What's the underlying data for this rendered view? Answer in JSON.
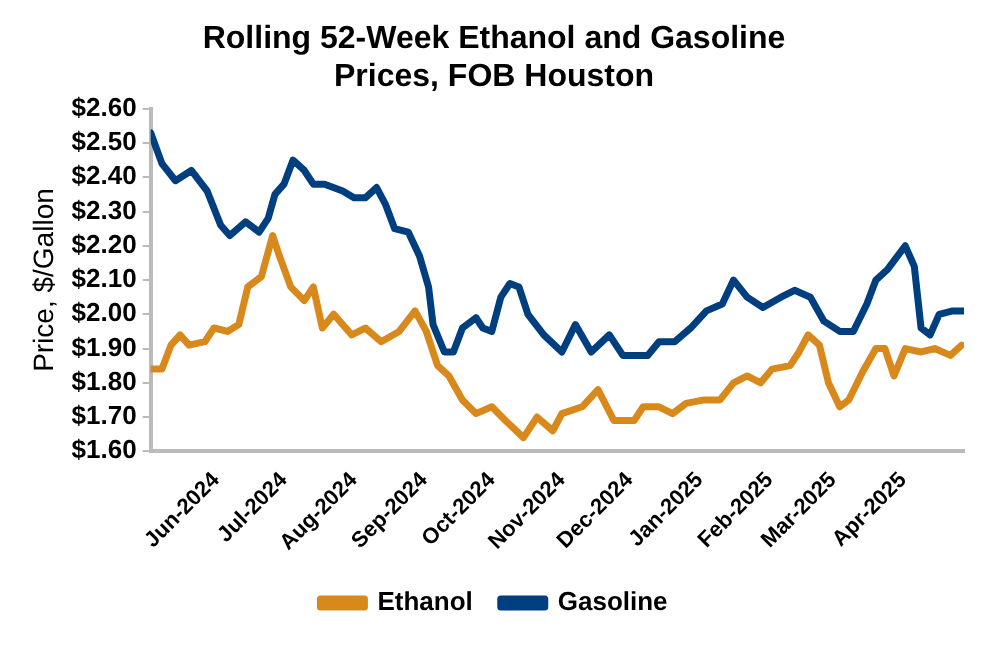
{
  "chart_data": {
    "type": "line",
    "title": "Rolling 52-Week Ethanol and Gasoline Prices, FOB Houston",
    "ylabel": "Price, $/Gallon",
    "xlim": [
      "2024-05-03",
      "2025-04-28"
    ],
    "xticks": [
      {
        "value": "2024-06-01",
        "label": "Jun-2024"
      },
      {
        "value": "2024-07-01",
        "label": "Jul-2024"
      },
      {
        "value": "2024-08-01",
        "label": "Aug-2024"
      },
      {
        "value": "2024-09-01",
        "label": "Sep-2024"
      },
      {
        "value": "2024-10-01",
        "label": "Oct-2024"
      },
      {
        "value": "2024-11-01",
        "label": "Nov-2024"
      },
      {
        "value": "2024-12-01",
        "label": "Dec-2024"
      },
      {
        "value": "2025-01-01",
        "label": "Jan-2025"
      },
      {
        "value": "2025-02-01",
        "label": "Feb-2025"
      },
      {
        "value": "2025-03-01",
        "label": "Mar-2025"
      },
      {
        "value": "2025-04-01",
        "label": "Apr-2025"
      }
    ],
    "ylim": [
      1.6,
      2.6
    ],
    "yticks": [
      {
        "value": 1.6,
        "label": "$1.60"
      },
      {
        "value": 1.7,
        "label": "$1.70"
      },
      {
        "value": 1.8,
        "label": "$1.80"
      },
      {
        "value": 1.9,
        "label": "$1.90"
      },
      {
        "value": 2.0,
        "label": "$2.00"
      },
      {
        "value": 2.1,
        "label": "$2.10"
      },
      {
        "value": 2.2,
        "label": "$2.20"
      },
      {
        "value": 2.3,
        "label": "$2.30"
      },
      {
        "value": 2.4,
        "label": "$2.40"
      },
      {
        "value": 2.5,
        "label": "$2.50"
      },
      {
        "value": 2.6,
        "label": "$2.60"
      }
    ],
    "grid": false,
    "legend": "bottom",
    "marker": "none",
    "line_style": "solid",
    "series": [
      {
        "name": "Ethanol",
        "color": "#d9891c",
        "x": [
          "2024-05-03",
          "2024-05-08",
          "2024-05-12",
          "2024-05-16",
          "2024-05-20",
          "2024-05-27",
          "2024-05-31",
          "2024-06-06",
          "2024-06-11",
          "2024-06-15",
          "2024-06-21",
          "2024-06-26",
          "2024-06-29",
          "2024-07-04",
          "2024-07-10",
          "2024-07-14",
          "2024-07-18",
          "2024-07-23",
          "2024-07-31",
          "2024-08-06",
          "2024-08-13",
          "2024-08-21",
          "2024-08-28",
          "2024-09-02",
          "2024-09-07",
          "2024-09-12",
          "2024-09-18",
          "2024-09-24",
          "2024-10-01",
          "2024-10-07",
          "2024-10-15",
          "2024-10-21",
          "2024-10-28",
          "2024-11-01",
          "2024-11-10",
          "2024-11-17",
          "2024-11-24",
          "2024-12-03",
          "2024-12-07",
          "2024-12-14",
          "2024-12-20",
          "2024-12-26",
          "2025-01-03",
          "2025-01-10",
          "2025-01-16",
          "2025-01-22",
          "2025-01-28",
          "2025-02-02",
          "2025-02-10",
          "2025-02-14",
          "2025-02-18",
          "2025-02-23",
          "2025-02-27",
          "2025-03-04",
          "2025-03-08",
          "2025-03-14",
          "2025-03-20",
          "2025-03-24",
          "2025-03-28",
          "2025-04-02",
          "2025-04-09",
          "2025-04-15",
          "2025-04-22",
          "2025-04-27"
        ],
        "values": [
          1.84,
          1.84,
          1.91,
          1.94,
          1.91,
          1.92,
          1.96,
          1.95,
          1.97,
          2.08,
          2.11,
          2.23,
          2.17,
          2.08,
          2.04,
          2.08,
          1.96,
          2.0,
          1.94,
          1.96,
          1.92,
          1.95,
          2.01,
          1.95,
          1.85,
          1.82,
          1.75,
          1.71,
          1.73,
          1.69,
          1.64,
          1.7,
          1.66,
          1.71,
          1.73,
          1.78,
          1.69,
          1.69,
          1.73,
          1.73,
          1.71,
          1.74,
          1.75,
          1.75,
          1.8,
          1.82,
          1.8,
          1.84,
          1.85,
          1.89,
          1.94,
          1.91,
          1.8,
          1.73,
          1.75,
          1.83,
          1.9,
          1.9,
          1.82,
          1.9,
          1.89,
          1.9,
          1.88,
          1.91
        ]
      },
      {
        "name": "Gasoline",
        "color": "#003f7f",
        "x": [
          "2024-05-03",
          "2024-05-08",
          "2024-05-14",
          "2024-05-21",
          "2024-05-28",
          "2024-06-03",
          "2024-06-07",
          "2024-06-14",
          "2024-06-20",
          "2024-06-24",
          "2024-06-27",
          "2024-07-01",
          "2024-07-05",
          "2024-07-10",
          "2024-07-14",
          "2024-07-19",
          "2024-07-27",
          "2024-08-01",
          "2024-08-06",
          "2024-08-11",
          "2024-08-15",
          "2024-08-19",
          "2024-08-25",
          "2024-08-30",
          "2024-09-03",
          "2024-09-05",
          "2024-09-10",
          "2024-09-14",
          "2024-09-18",
          "2024-09-24",
          "2024-09-27",
          "2024-10-01",
          "2024-10-05",
          "2024-10-09",
          "2024-10-13",
          "2024-10-17",
          "2024-10-24",
          "2024-11-01",
          "2024-11-07",
          "2024-11-14",
          "2024-11-22",
          "2024-11-28",
          "2024-12-09",
          "2024-12-14",
          "2024-12-21",
          "2024-12-28",
          "2025-01-04",
          "2025-01-11",
          "2025-01-16",
          "2025-01-22",
          "2025-01-29",
          "2025-02-06",
          "2025-02-12",
          "2025-02-19",
          "2025-02-25",
          "2025-03-04",
          "2025-03-10",
          "2025-03-16",
          "2025-03-20",
          "2025-03-25",
          "2025-04-02",
          "2025-04-06",
          "2025-04-09",
          "2025-04-13",
          "2025-04-17",
          "2025-04-23",
          "2025-04-28"
        ],
        "values": [
          2.53,
          2.44,
          2.39,
          2.42,
          2.36,
          2.26,
          2.23,
          2.27,
          2.24,
          2.28,
          2.35,
          2.38,
          2.45,
          2.42,
          2.38,
          2.38,
          2.36,
          2.34,
          2.34,
          2.37,
          2.32,
          2.25,
          2.24,
          2.17,
          2.08,
          1.97,
          1.89,
          1.89,
          1.96,
          1.99,
          1.96,
          1.95,
          2.05,
          2.09,
          2.08,
          2.0,
          1.94,
          1.89,
          1.97,
          1.89,
          1.94,
          1.88,
          1.88,
          1.92,
          1.92,
          1.96,
          2.01,
          2.03,
          2.1,
          2.05,
          2.02,
          2.05,
          2.07,
          2.05,
          1.98,
          1.95,
          1.95,
          2.03,
          2.1,
          2.13,
          2.2,
          2.14,
          1.96,
          1.94,
          2.0,
          2.01,
          2.01
        ]
      }
    ]
  }
}
